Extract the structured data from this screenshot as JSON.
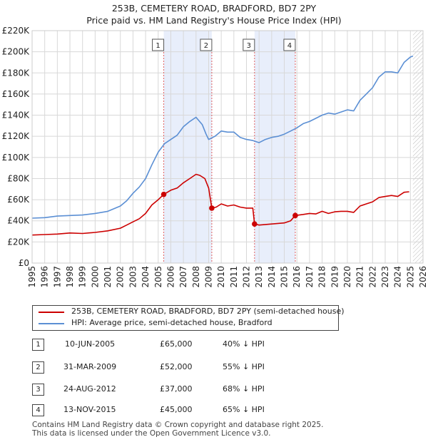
{
  "chart_data": {
    "type": "line",
    "title": "253B, CEMETERY ROAD, BRADFORD, BD7 2PY",
    "subtitle": "Price paid vs. HM Land Registry's House Price Index (HPI)",
    "xlim": [
      1995,
      2026
    ],
    "ylim": [
      0,
      220000
    ],
    "x_ticks": [
      1995,
      1996,
      1997,
      1998,
      1999,
      2000,
      2001,
      2002,
      2003,
      2004,
      2005,
      2006,
      2007,
      2008,
      2009,
      2010,
      2011,
      2012,
      2013,
      2014,
      2015,
      2016,
      2017,
      2018,
      2019,
      2020,
      2021,
      2022,
      2023,
      2024,
      2025,
      2026
    ],
    "y_ticks": [
      {
        "value": 0,
        "label": "£0"
      },
      {
        "value": 20000,
        "label": "£20K"
      },
      {
        "value": 40000,
        "label": "£40K"
      },
      {
        "value": 60000,
        "label": "£60K"
      },
      {
        "value": 80000,
        "label": "£80K"
      },
      {
        "value": 100000,
        "label": "£100K"
      },
      {
        "value": 120000,
        "label": "£120K"
      },
      {
        "value": 140000,
        "label": "£140K"
      },
      {
        "value": 160000,
        "label": "£160K"
      },
      {
        "value": 180000,
        "label": "£180K"
      },
      {
        "value": 200000,
        "label": "£200K"
      },
      {
        "value": 220000,
        "label": "£220K"
      }
    ],
    "grid": true,
    "projection_start": 2025.2,
    "series": [
      {
        "name": "253B, CEMETERY ROAD, BRADFORD, BD7 2PY (semi-detached house)",
        "color": "#cc0000",
        "points": [
          [
            1995.0,
            26500
          ],
          [
            1996.0,
            27000
          ],
          [
            1997.0,
            27500
          ],
          [
            1998.0,
            28500
          ],
          [
            1999.0,
            28000
          ],
          [
            2000.0,
            29000
          ],
          [
            2001.0,
            30500
          ],
          [
            2002.0,
            33000
          ],
          [
            2002.5,
            36000
          ],
          [
            2003.0,
            39000
          ],
          [
            2003.5,
            42000
          ],
          [
            2004.0,
            47000
          ],
          [
            2004.5,
            55000
          ],
          [
            2005.0,
            60000
          ],
          [
            2005.44,
            65000
          ],
          [
            2006.0,
            69000
          ],
          [
            2006.5,
            71000
          ],
          [
            2007.0,
            76000
          ],
          [
            2007.5,
            80000
          ],
          [
            2008.0,
            84000
          ],
          [
            2008.3,
            83000
          ],
          [
            2008.7,
            80000
          ],
          [
            2009.0,
            71000
          ],
          [
            2009.25,
            52000
          ],
          [
            2009.6,
            53000
          ],
          [
            2010.0,
            56000
          ],
          [
            2010.5,
            54000
          ],
          [
            2011.0,
            55000
          ],
          [
            2011.5,
            53000
          ],
          [
            2012.0,
            52000
          ],
          [
            2012.5,
            52000
          ],
          [
            2012.64,
            37000
          ],
          [
            2013.0,
            36000
          ],
          [
            2013.5,
            36500
          ],
          [
            2014.0,
            37000
          ],
          [
            2014.5,
            37500
          ],
          [
            2015.0,
            38000
          ],
          [
            2015.5,
            40000
          ],
          [
            2015.87,
            45000
          ],
          [
            2016.5,
            46000
          ],
          [
            2017.0,
            47000
          ],
          [
            2017.5,
            46500
          ],
          [
            2018.0,
            49000
          ],
          [
            2018.5,
            47000
          ],
          [
            2019.0,
            48500
          ],
          [
            2019.5,
            49000
          ],
          [
            2020.0,
            49000
          ],
          [
            2020.5,
            48000
          ],
          [
            2021.0,
            54000
          ],
          [
            2021.5,
            56000
          ],
          [
            2022.0,
            58000
          ],
          [
            2022.5,
            62000
          ],
          [
            2023.0,
            63000
          ],
          [
            2023.5,
            64000
          ],
          [
            2024.0,
            63000
          ],
          [
            2024.5,
            67000
          ],
          [
            2024.9,
            67500
          ]
        ]
      },
      {
        "name": "HPI: Average price, semi-detached house, Bradford",
        "color": "#5b8fd4",
        "points": [
          [
            1995.0,
            42500
          ],
          [
            1996.0,
            43000
          ],
          [
            1997.0,
            44500
          ],
          [
            1998.0,
            45000
          ],
          [
            1999.0,
            45500
          ],
          [
            2000.0,
            47000
          ],
          [
            2001.0,
            49000
          ],
          [
            2002.0,
            54000
          ],
          [
            2002.5,
            59000
          ],
          [
            2003.0,
            66000
          ],
          [
            2003.5,
            72000
          ],
          [
            2004.0,
            80000
          ],
          [
            2004.5,
            93000
          ],
          [
            2005.0,
            105000
          ],
          [
            2005.5,
            113000
          ],
          [
            2006.0,
            117000
          ],
          [
            2006.5,
            121000
          ],
          [
            2007.0,
            129000
          ],
          [
            2007.5,
            134000
          ],
          [
            2008.0,
            138000
          ],
          [
            2008.5,
            131000
          ],
          [
            2008.8,
            122000
          ],
          [
            2009.0,
            117000
          ],
          [
            2009.5,
            120000
          ],
          [
            2010.0,
            125000
          ],
          [
            2010.5,
            124000
          ],
          [
            2011.0,
            124000
          ],
          [
            2011.5,
            119000
          ],
          [
            2012.0,
            117000
          ],
          [
            2012.5,
            116000
          ],
          [
            2013.0,
            114000
          ],
          [
            2013.5,
            117000
          ],
          [
            2014.0,
            119000
          ],
          [
            2014.5,
            120000
          ],
          [
            2015.0,
            122000
          ],
          [
            2015.5,
            125000
          ],
          [
            2016.0,
            128000
          ],
          [
            2016.5,
            132000
          ],
          [
            2017.0,
            134000
          ],
          [
            2017.5,
            137000
          ],
          [
            2018.0,
            140000
          ],
          [
            2018.5,
            142000
          ],
          [
            2019.0,
            141000
          ],
          [
            2019.5,
            143000
          ],
          [
            2020.0,
            145000
          ],
          [
            2020.5,
            144000
          ],
          [
            2021.0,
            154000
          ],
          [
            2021.5,
            160000
          ],
          [
            2022.0,
            166000
          ],
          [
            2022.5,
            176000
          ],
          [
            2023.0,
            181000
          ],
          [
            2023.5,
            181000
          ],
          [
            2024.0,
            180000
          ],
          [
            2024.5,
            190000
          ],
          [
            2025.0,
            195000
          ],
          [
            2025.2,
            196000
          ]
        ]
      }
    ],
    "markers": [
      {
        "label": "1",
        "x": 2005.44,
        "value": 65000
      },
      {
        "label": "2",
        "x": 2009.25,
        "value": 52000
      },
      {
        "label": "3",
        "x": 2012.64,
        "value": 37000
      },
      {
        "label": "4",
        "x": 2015.87,
        "value": 45000
      }
    ],
    "shaded_ranges": [
      [
        2005.44,
        2009.25
      ],
      [
        2012.64,
        2015.87
      ]
    ]
  },
  "legend": [
    {
      "label": "253B, CEMETERY ROAD, BRADFORD, BD7 2PY (semi-detached house)",
      "color": "#cc0000"
    },
    {
      "label": "HPI: Average price, semi-detached house, Bradford",
      "color": "#5b8fd4"
    }
  ],
  "transactions": [
    {
      "num": "1",
      "date": "10-JUN-2005",
      "price": "£65,000",
      "hpi": "40% ↓ HPI"
    },
    {
      "num": "2",
      "date": "31-MAR-2009",
      "price": "£52,000",
      "hpi": "55% ↓ HPI"
    },
    {
      "num": "3",
      "date": "24-AUG-2012",
      "price": "£37,000",
      "hpi": "68% ↓ HPI"
    },
    {
      "num": "4",
      "date": "13-NOV-2015",
      "price": "£45,000",
      "hpi": "65% ↓ HPI"
    }
  ],
  "footer": {
    "line1": "Contains HM Land Registry data © Crown copyright and database right 2025.",
    "line2": "This data is licensed under the Open Government Licence v3.0."
  }
}
